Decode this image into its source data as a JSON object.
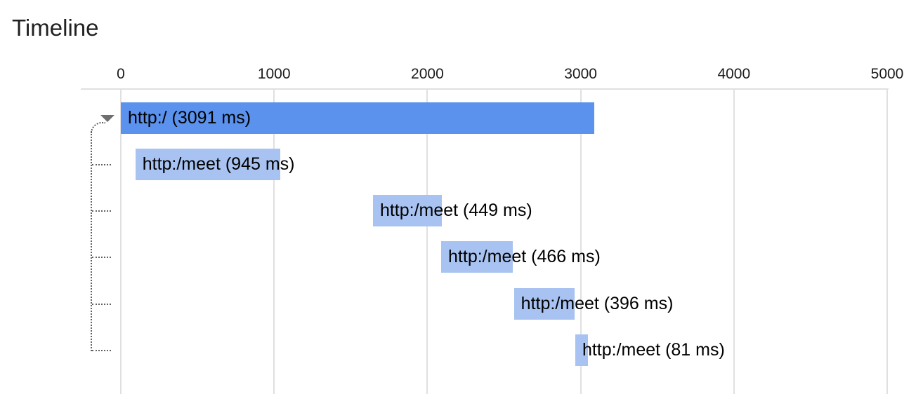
{
  "title": "Timeline",
  "chart_data": {
    "type": "bar",
    "variant": "trace-timeline-gantt",
    "title": "Timeline",
    "xlabel": "",
    "x_unit": "ms",
    "xlim": [
      0,
      5000
    ],
    "x_ticks": [
      "0",
      "1000",
      "2000",
      "3000",
      "4000",
      "5000"
    ],
    "grid": true,
    "legend": "none",
    "rows": [
      {
        "label": "http:/ (3091 ms)",
        "start_ms": 0,
        "duration_ms": 3091,
        "role": "parent",
        "expanded": true
      },
      {
        "label": "http:/meet (945 ms)",
        "start_ms": 95,
        "duration_ms": 945,
        "role": "child"
      },
      {
        "label": "http:/meet (449 ms)",
        "start_ms": 1645,
        "duration_ms": 449,
        "role": "child"
      },
      {
        "label": "http:/meet (466 ms)",
        "start_ms": 2090,
        "duration_ms": 466,
        "role": "child"
      },
      {
        "label": "http:/meet (396 ms)",
        "start_ms": 2565,
        "duration_ms": 396,
        "role": "child"
      },
      {
        "label": "http:/meet (81 ms)",
        "start_ms": 2965,
        "duration_ms": 81,
        "role": "child"
      }
    ],
    "colors": {
      "parent_bar": "#5a92ee",
      "child_bar": "#a8c3f1",
      "grid_line": "#e0e0e0",
      "axis_label": "#1b1b1b",
      "bar_label": "#000000",
      "connector": "#616161",
      "collapse_arrow": "#6e6e6e",
      "title": "#212121",
      "background": "#ffffff"
    }
  }
}
